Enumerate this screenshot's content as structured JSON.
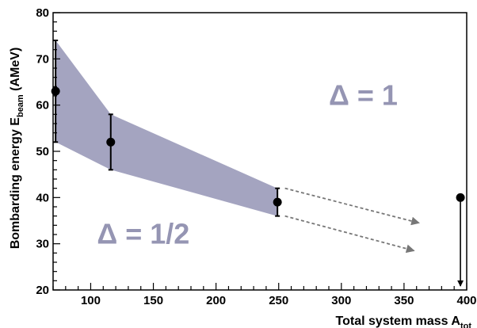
{
  "chart_data": {
    "type": "scatter",
    "xlabel": {
      "main": "Total system mass A",
      "sub": "tot"
    },
    "ylabel": {
      "main": "Bombarding energy E",
      "sub": "beam",
      "unit": " (AMeV)"
    },
    "xlim": [
      70,
      400
    ],
    "ylim": [
      20,
      80
    ],
    "x_ticks": [
      100,
      150,
      200,
      250,
      300,
      350,
      400
    ],
    "y_ticks": [
      20,
      30,
      40,
      50,
      60,
      70,
      80
    ],
    "x_tick_labels": [
      "100",
      "150",
      "200",
      "250",
      "300",
      "350",
      "400"
    ],
    "y_tick_labels": [
      "20",
      "30",
      "40",
      "50",
      "60",
      "70",
      "80"
    ],
    "points": [
      {
        "x": 72,
        "y": 63,
        "err_low": 52,
        "err_high": 74
      },
      {
        "x": 116,
        "y": 52,
        "err_low": 46,
        "err_high": 58
      },
      {
        "x": 249,
        "y": 39,
        "err_low": 36,
        "err_high": 42
      },
      {
        "x": 395,
        "y": 40,
        "err_low": 20.5,
        "err_high": 40,
        "arrow_down": true
      }
    ],
    "band": {
      "upper": [
        [
          72,
          74
        ],
        [
          116,
          58
        ],
        [
          249,
          42
        ]
      ],
      "lower": [
        [
          72,
          52
        ],
        [
          116,
          46
        ],
        [
          249,
          36
        ]
      ],
      "color": "#a4a4c0"
    },
    "extrapolation_arrows": [
      {
        "from": [
          255,
          42
        ],
        "to": [
          362,
          34.5
        ]
      },
      {
        "from": [
          255,
          36
        ],
        "to": [
          358,
          28.5
        ]
      }
    ],
    "annotations": [
      {
        "text": "Δ = 1",
        "x": 290,
        "y": 60
      },
      {
        "text": "Δ = 1/2",
        "x": 105,
        "y": 30
      }
    ],
    "colors": {
      "band": "#a4a4c0",
      "annotation": "#9595b3",
      "arrow": "#777777",
      "marker": "#000000"
    }
  }
}
